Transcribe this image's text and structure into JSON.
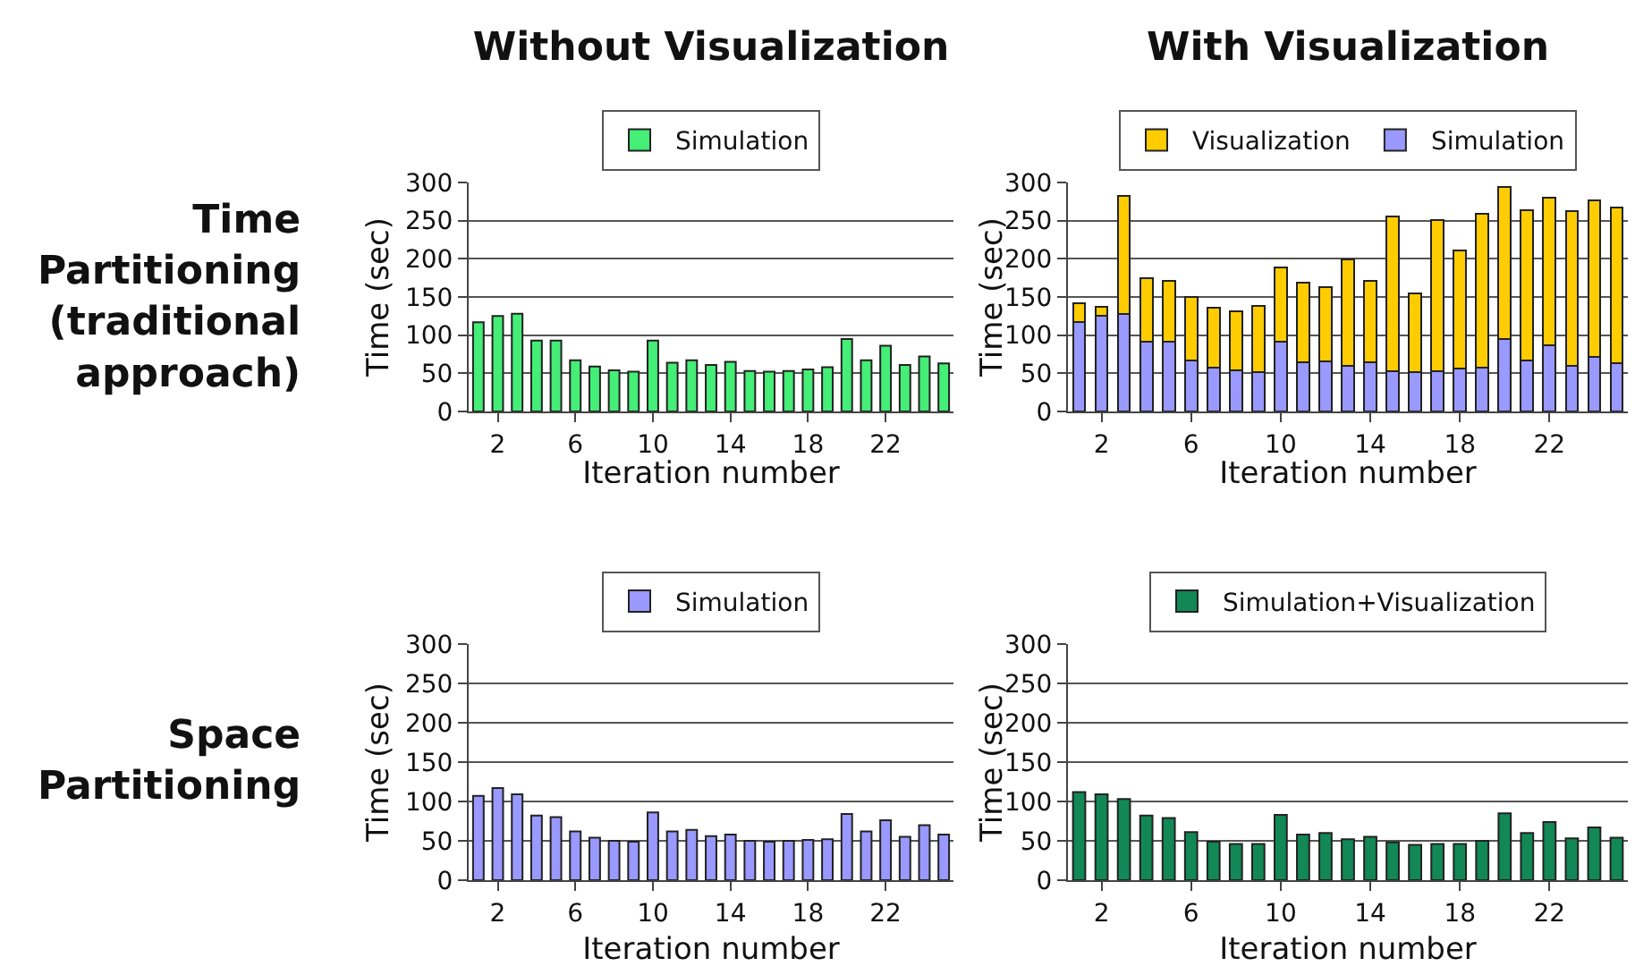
{
  "chart_data": [
    {
      "type": "bar",
      "title": "Without Visualization",
      "xlabel": "Iteration number",
      "ylabel": "Time (sec)",
      "annotations": [
        "Time\nPartitioning\n(traditional\napproach)"
      ],
      "x": [
        1,
        2,
        3,
        4,
        5,
        6,
        7,
        8,
        9,
        10,
        11,
        12,
        13,
        14,
        15,
        16,
        17,
        18,
        19,
        20,
        21,
        22,
        23,
        24,
        25
      ],
      "xlim": [
        0.5,
        25.5
      ],
      "xticks": [
        2,
        6,
        10,
        14,
        18,
        22
      ],
      "ylim": [
        0,
        300
      ],
      "yticks": [
        0,
        50,
        100,
        150,
        200,
        250,
        300
      ],
      "grid": "y",
      "legend": "top",
      "series": [
        {
          "name": "Simulation",
          "color": "#44ee77",
          "values": [
            117,
            125,
            128,
            93,
            93,
            67,
            59,
            54,
            52,
            93,
            64,
            67,
            61,
            65,
            53,
            52,
            53,
            55,
            58,
            95,
            67,
            86,
            61,
            72,
            63
          ]
        }
      ]
    },
    {
      "type": "bar",
      "title": "With Visualization",
      "xlabel": "Iteration number",
      "ylabel": "Time (sec)",
      "x": [
        1,
        2,
        3,
        4,
        5,
        6,
        7,
        8,
        9,
        10,
        11,
        12,
        13,
        14,
        15,
        16,
        17,
        18,
        19,
        20,
        21,
        22,
        23,
        24,
        25
      ],
      "xlim": [
        0.5,
        25.5
      ],
      "xticks": [
        2,
        6,
        10,
        14,
        18,
        22
      ],
      "ylim": [
        0,
        300
      ],
      "yticks": [
        0,
        50,
        100,
        150,
        200,
        250,
        300
      ],
      "grid": "y",
      "legend": "top",
      "stacked": true,
      "series": [
        {
          "name": "Simulation",
          "color": "#9999ff",
          "values": [
            117,
            125,
            128,
            92,
            92,
            67,
            58,
            54,
            52,
            92,
            64,
            66,
            60,
            65,
            53,
            52,
            53,
            56,
            58,
            95,
            67,
            87,
            60,
            72,
            63
          ]
        },
        {
          "name": "Visualization",
          "color": "#ffcc00",
          "values": [
            25,
            12,
            154,
            83,
            79,
            83,
            78,
            77,
            86,
            97,
            105,
            97,
            139,
            106,
            202,
            103,
            198,
            155,
            201,
            199,
            197,
            193,
            202,
            205,
            204
          ]
        }
      ]
    },
    {
      "type": "bar",
      "xlabel": "Iteration number",
      "ylabel": "Time (sec)",
      "annotations": [
        "Space\nPartitioning"
      ],
      "x": [
        1,
        2,
        3,
        4,
        5,
        6,
        7,
        8,
        9,
        10,
        11,
        12,
        13,
        14,
        15,
        16,
        17,
        18,
        19,
        20,
        21,
        22,
        23,
        24,
        25
      ],
      "xlim": [
        0.5,
        25.5
      ],
      "xticks": [
        2,
        6,
        10,
        14,
        18,
        22
      ],
      "ylim": [
        0,
        300
      ],
      "yticks": [
        0,
        50,
        100,
        150,
        200,
        250,
        300
      ],
      "grid": "y",
      "legend": "top",
      "series": [
        {
          "name": "Simulation",
          "color": "#9999ff",
          "values": [
            107,
            117,
            109,
            82,
            80,
            62,
            54,
            50,
            49,
            86,
            62,
            64,
            56,
            58,
            50,
            49,
            50,
            51,
            52,
            84,
            62,
            76,
            55,
            70,
            58
          ]
        }
      ]
    },
    {
      "type": "bar",
      "xlabel": "Iteration number",
      "ylabel": "Time (sec)",
      "x": [
        1,
        2,
        3,
        4,
        5,
        6,
        7,
        8,
        9,
        10,
        11,
        12,
        13,
        14,
        15,
        16,
        17,
        18,
        19,
        20,
        21,
        22,
        23,
        24,
        25
      ],
      "xlim": [
        0.5,
        25.5
      ],
      "xticks": [
        2,
        6,
        10,
        14,
        18,
        22
      ],
      "ylim": [
        0,
        300
      ],
      "yticks": [
        0,
        50,
        100,
        150,
        200,
        250,
        300
      ],
      "grid": "y",
      "legend": "top",
      "series": [
        {
          "name": "Simulation+Visualization",
          "color": "#118855",
          "values": [
            112,
            109,
            103,
            82,
            79,
            61,
            49,
            46,
            46,
            83,
            58,
            60,
            52,
            55,
            48,
            45,
            46,
            46,
            50,
            85,
            60,
            74,
            53,
            67,
            54
          ]
        }
      ]
    }
  ]
}
